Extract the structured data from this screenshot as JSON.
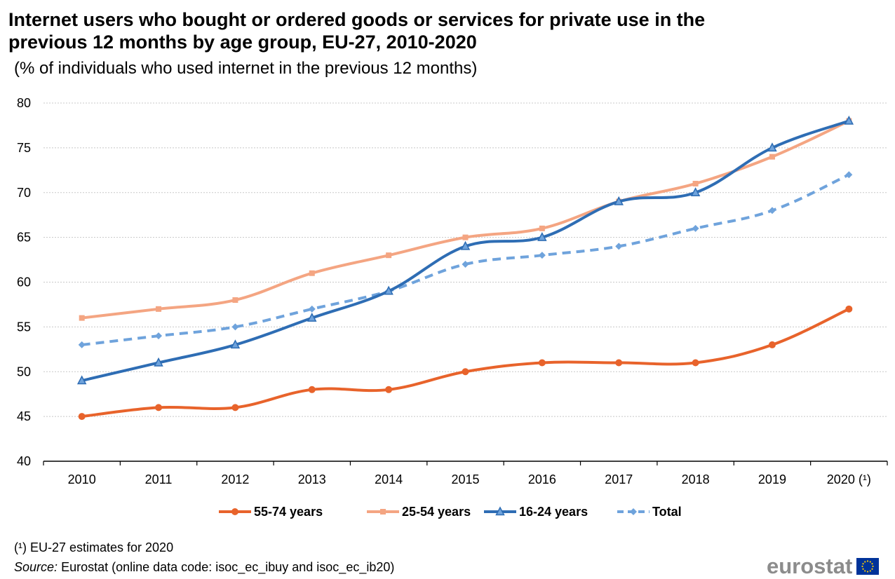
{
  "title": "Internet users who bought or ordered goods or services for private use in the previous 12 months by age group, EU-27, 2010-2020",
  "subtitle": "(% of individuals who used internet in the previous 12 months)",
  "footnote": "(¹) EU-27 estimates for 2020",
  "source_label": "Source:",
  "source_text": "Eurostat (online data code:  isoc_ec_ibuy and isoc_ec_ib20)",
  "logo_text": "eurostat",
  "chart_data": {
    "type": "line",
    "categories": [
      "2010",
      "2011",
      "2012",
      "2013",
      "2014",
      "2015",
      "2016",
      "2017",
      "2018",
      "2019",
      "2020 (¹)"
    ],
    "ylim": [
      40,
      80
    ],
    "yticks": [
      40,
      45,
      50,
      55,
      60,
      65,
      70,
      75,
      80
    ],
    "grid": true,
    "legend_position": "bottom",
    "series": [
      {
        "name": "55-74 years",
        "color": "#e8632b",
        "marker": "circle",
        "dashed": false,
        "values": [
          45,
          46,
          46,
          48,
          48,
          50,
          51,
          51,
          51,
          53,
          57
        ]
      },
      {
        "name": "25-54 years",
        "color": "#f4a582",
        "marker": "square",
        "dashed": false,
        "values": [
          56,
          57,
          58,
          61,
          63,
          65,
          66,
          69,
          71,
          74,
          78
        ]
      },
      {
        "name": "16-24 years",
        "color": "#2e6db4",
        "marker": "triangle",
        "dashed": false,
        "values": [
          49,
          51,
          53,
          56,
          59,
          64,
          65,
          69,
          70,
          75,
          78
        ]
      },
      {
        "name": "Total",
        "color": "#6fa3dc",
        "marker": "diamond",
        "dashed": true,
        "values": [
          53,
          54,
          55,
          57,
          59,
          62,
          63,
          64,
          66,
          68,
          72
        ]
      }
    ]
  }
}
